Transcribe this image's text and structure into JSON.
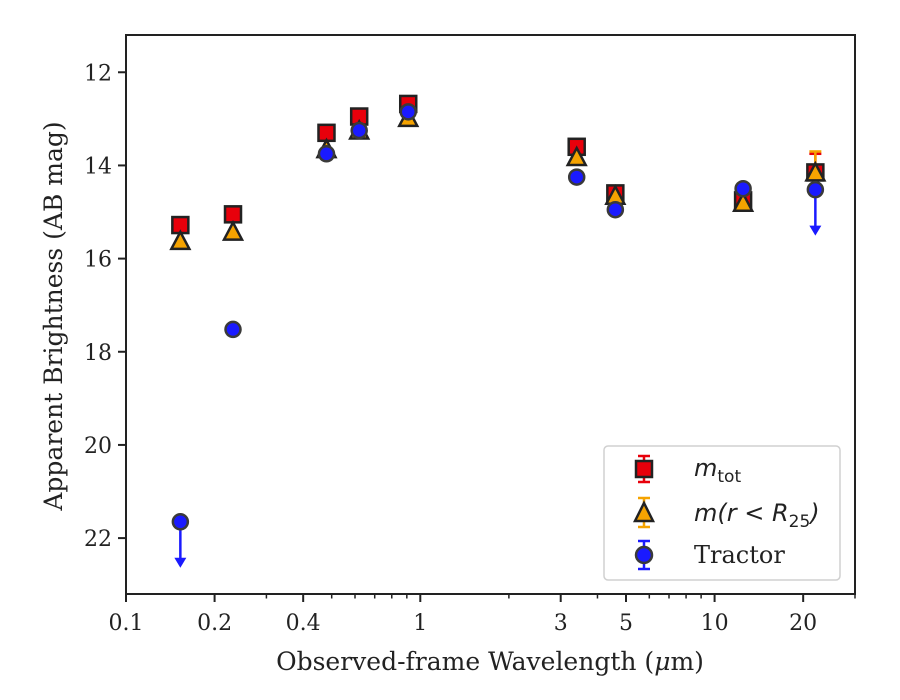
{
  "chart_data": {
    "type": "scatter",
    "xlabel_prefix": "Observed-frame Wavelength (",
    "xlabel_unit_greek": "μ",
    "xlabel_suffix": "m)",
    "ylabel": "Apparent Brightness (AB mag)",
    "xscale": "log",
    "xlim": [
      0.1,
      30
    ],
    "ylim": [
      23.2,
      11.2
    ],
    "y_inverted": true,
    "x_ticks": [
      0.1,
      0.2,
      0.4,
      1,
      3,
      5,
      10,
      20
    ],
    "x_tick_labels": [
      "0.1",
      "0.2",
      "0.4",
      "1",
      "3",
      "5",
      "10",
      "20"
    ],
    "y_ticks": [
      12,
      14,
      16,
      18,
      20,
      22
    ],
    "y_tick_labels": [
      "12",
      "14",
      "16",
      "18",
      "20",
      "22"
    ],
    "legend_position": "lower right",
    "series": [
      {
        "name_main": "m",
        "name_sub": "tot",
        "marker": "square",
        "color": "#e8000b",
        "edge": "#222222",
        "points": [
          {
            "x": 0.153,
            "y": 15.28
          },
          {
            "x": 0.231,
            "y": 15.05
          },
          {
            "x": 0.48,
            "y": 13.3
          },
          {
            "x": 0.62,
            "y": 12.95
          },
          {
            "x": 0.91,
            "y": 12.68
          },
          {
            "x": 3.4,
            "y": 13.6
          },
          {
            "x": 4.6,
            "y": 14.6
          },
          {
            "x": 12.5,
            "y": 14.75
          },
          {
            "x": 22.0,
            "y": 14.15,
            "yerr": 0.4
          }
        ]
      },
      {
        "name_prefix": "m(r < R",
        "name_sub": "25",
        "name_suffix": ")",
        "marker": "triangle",
        "color": "#f5a300",
        "edge": "#222222",
        "points": [
          {
            "x": 0.153,
            "y": 15.62
          },
          {
            "x": 0.231,
            "y": 15.42
          },
          {
            "x": 0.48,
            "y": 13.65
          },
          {
            "x": 0.62,
            "y": 13.25
          },
          {
            "x": 0.91,
            "y": 12.98
          },
          {
            "x": 3.4,
            "y": 13.82
          },
          {
            "x": 4.6,
            "y": 14.65
          },
          {
            "x": 12.5,
            "y": 14.8
          },
          {
            "x": 22.0,
            "y": 14.15,
            "yerr": 0.45
          }
        ]
      },
      {
        "name": "Tractor",
        "marker": "circle",
        "color": "#1a1aff",
        "edge": "#3a3a3a",
        "points": [
          {
            "x": 0.153,
            "y": 21.65,
            "upper_limit": true
          },
          {
            "x": 0.231,
            "y": 17.52
          },
          {
            "x": 0.48,
            "y": 13.75
          },
          {
            "x": 0.62,
            "y": 13.25
          },
          {
            "x": 0.91,
            "y": 12.85
          },
          {
            "x": 3.4,
            "y": 14.25
          },
          {
            "x": 4.6,
            "y": 14.95
          },
          {
            "x": 12.5,
            "y": 14.5
          },
          {
            "x": 22.0,
            "y": 14.52,
            "upper_limit": true
          }
        ]
      }
    ]
  }
}
